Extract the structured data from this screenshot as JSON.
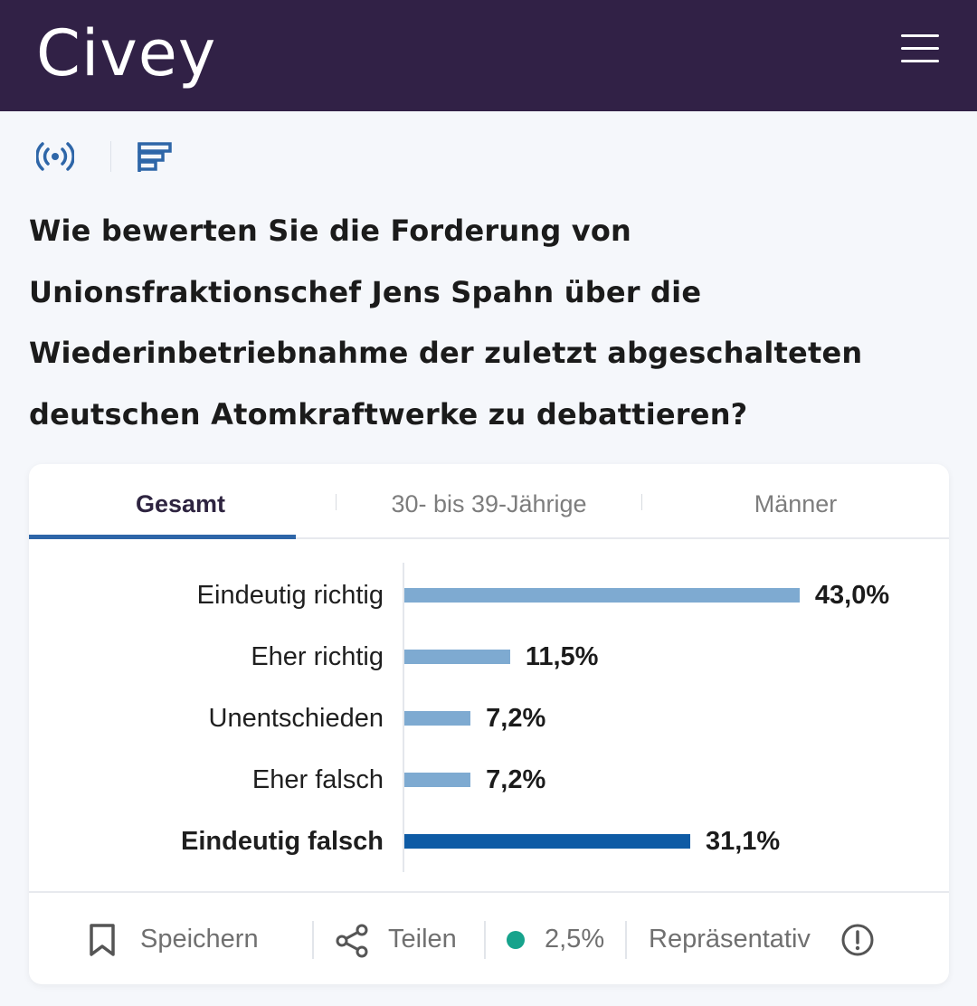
{
  "header": {
    "logo_text": "Civey",
    "menu_icon": "hamburger-menu-icon"
  },
  "icons_row": {
    "live_icon": "broadcast-icon",
    "chart_icon": "bar-chart-icon"
  },
  "question": "Wie bewerten Sie die Forderung von Unionsfraktionschef Jens Spahn über die Wiederinbetriebnahme der zuletzt abgeschalteten deutschen Atomkraftwerke zu debattieren?",
  "tabs": [
    {
      "label": "Gesamt",
      "active": true
    },
    {
      "label": "30- bis 39-Jährige",
      "active": false
    },
    {
      "label": "Männer",
      "active": false
    }
  ],
  "chart_data": {
    "type": "bar",
    "orientation": "horizontal",
    "categories": [
      "Eindeutig richtig",
      "Eher richtig",
      "Unentschieden",
      "Eher falsch",
      "Eindeutig falsch"
    ],
    "values": [
      43.0,
      11.5,
      7.2,
      7.2,
      31.1
    ],
    "value_labels": [
      "43,0%",
      "11,5%",
      "7,2%",
      "7,2%",
      "31,1%"
    ],
    "highlighted": [
      false,
      false,
      false,
      false,
      true
    ],
    "xlim": [
      0,
      100
    ],
    "colors": {
      "normal": "#7eaad1",
      "highlight": "#0e5ba5"
    }
  },
  "footer": {
    "save_label": "Speichern",
    "share_label": "Teilen",
    "error_margin": "2,5%",
    "representative_label": "Repräsentativ",
    "status_color": "#16a38c"
  }
}
